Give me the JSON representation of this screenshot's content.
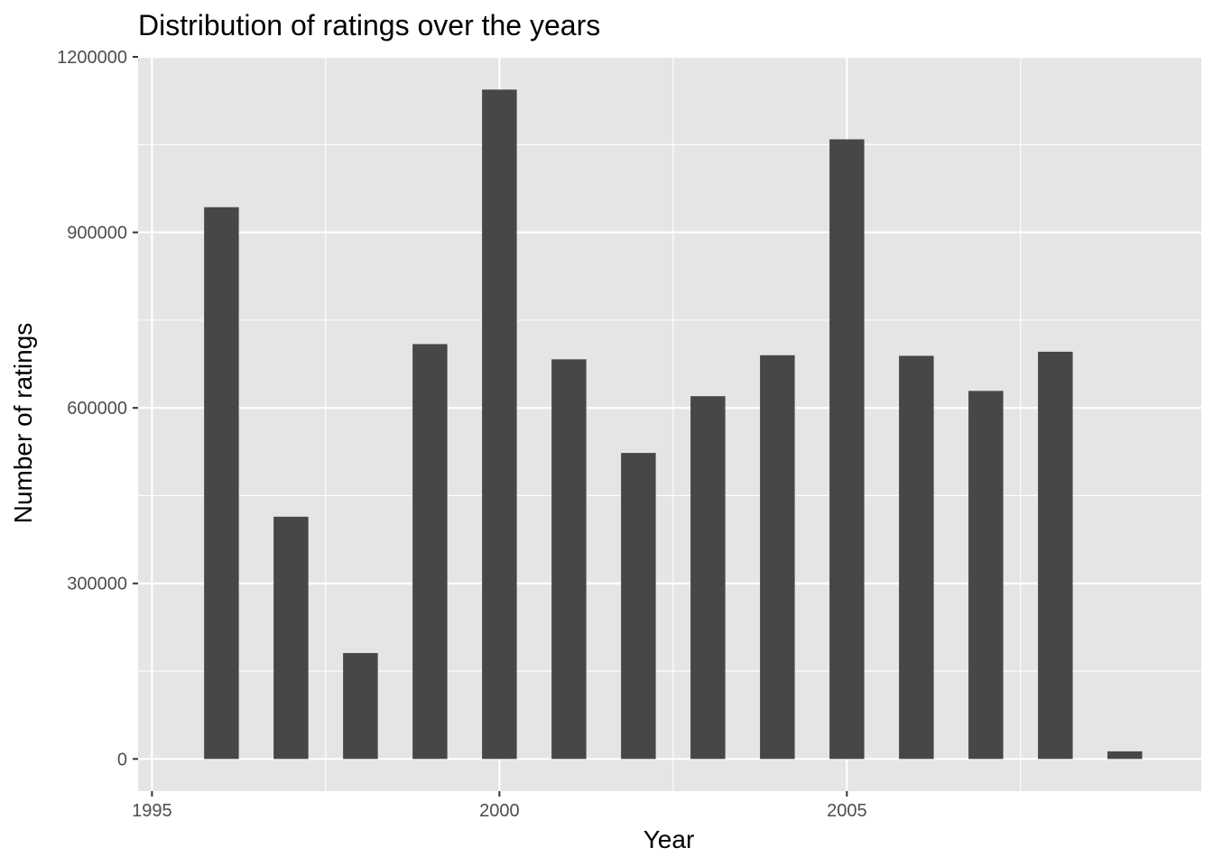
{
  "chart_data": {
    "type": "bar",
    "title": "Distribution of ratings over the years",
    "xlabel": "Year",
    "ylabel": "Number of ratings",
    "x": [
      1996,
      1997,
      1998,
      1999,
      2000,
      2001,
      2002,
      2003,
      2004,
      2005,
      2006,
      2007,
      2008,
      2009
    ],
    "values": [
      943000,
      414000,
      181000,
      709000,
      1144000,
      683000,
      523000,
      620000,
      690000,
      1059000,
      689000,
      629000,
      696000,
      13000
    ],
    "xlim": [
      1994.8,
      2010.1
    ],
    "ylim": [
      -55000,
      1200000
    ],
    "xticks": [
      1995,
      2000,
      2005
    ],
    "xticks_minor": [
      1997.5,
      2002.5,
      2007.5
    ],
    "yticks": [
      0,
      300000,
      600000,
      900000,
      1200000
    ],
    "yticks_minor": [
      150000,
      450000,
      750000,
      1050000
    ],
    "bar_width_years": 0.5,
    "grid": true,
    "legend": "none",
    "colors": {
      "panel": "#e5e5e5",
      "bar": "#474747",
      "grid": "#ffffff",
      "tick_text": "#4d4d4d"
    }
  }
}
